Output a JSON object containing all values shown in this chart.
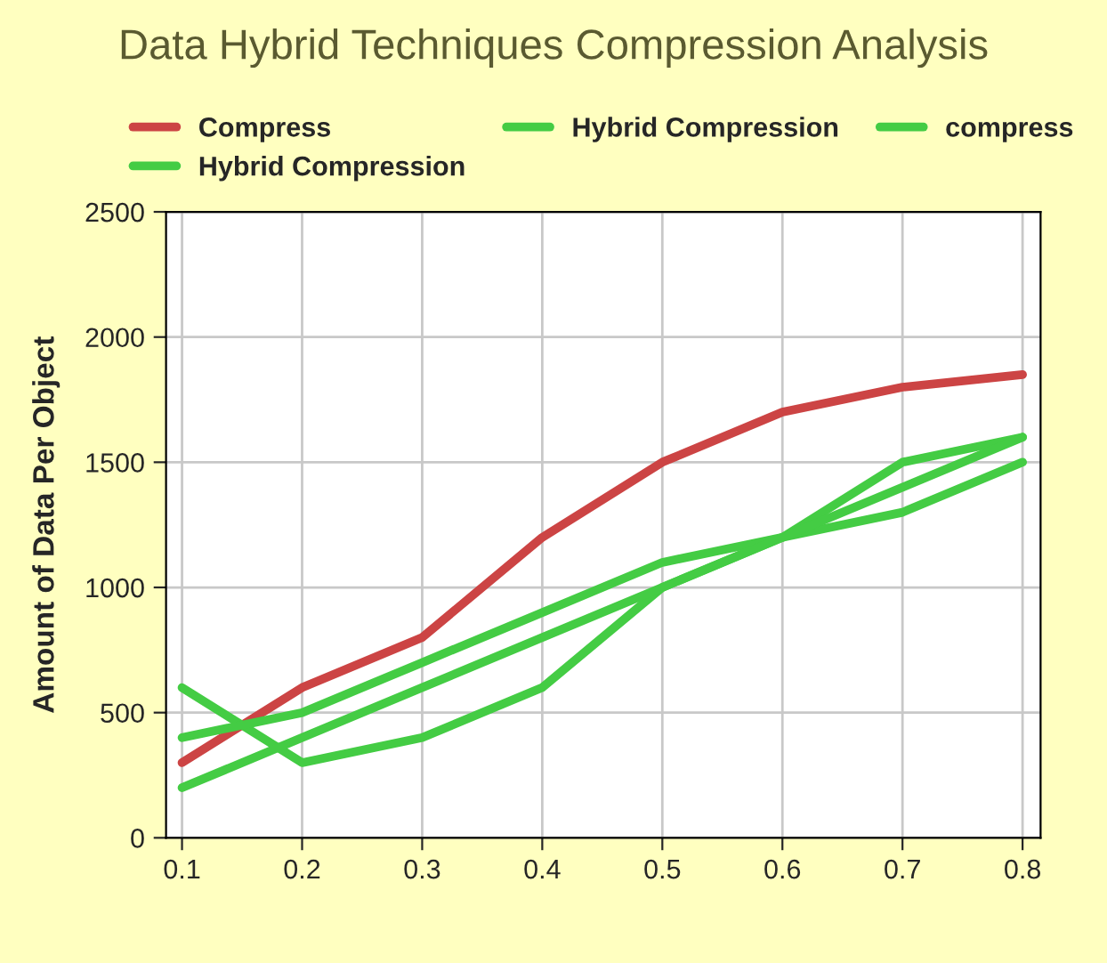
{
  "chart_data": {
    "type": "line",
    "title": "Data Hybrid Techniques Compression Analysis",
    "ylabel": "Amount of Data Per Object",
    "x": [
      0.1,
      0.2,
      0.3,
      0.4,
      0.5,
      0.6,
      0.7,
      0.8
    ],
    "series": [
      {
        "name": "Compress",
        "color": "#cc4444",
        "values": [
          300,
          600,
          800,
          1200,
          1500,
          1700,
          1800,
          1850
        ]
      },
      {
        "name": "Hybrid Compression",
        "color": "#44cc44",
        "values": [
          600,
          300,
          400,
          600,
          1000,
          1200,
          1500,
          1600
        ]
      },
      {
        "name": "compress",
        "color": "#44cc44",
        "values": [
          400,
          500,
          700,
          900,
          1100,
          1200,
          1300,
          1500
        ]
      },
      {
        "name": "Hybrid Compression",
        "color": "#44cc44",
        "values": [
          200,
          400,
          600,
          800,
          1000,
          1200,
          1400,
          1600
        ]
      }
    ],
    "xlim": [
      0.0867,
      0.815
    ],
    "xticks": [
      0.1,
      0.2,
      0.3,
      0.4,
      0.5,
      0.6,
      0.7,
      0.8
    ],
    "ylim": [
      0,
      2500
    ],
    "yticks": [
      0,
      500,
      1000,
      1500,
      2000,
      2500
    ],
    "grid": true,
    "legend": "top",
    "marker": "none",
    "line_style": "solid"
  }
}
